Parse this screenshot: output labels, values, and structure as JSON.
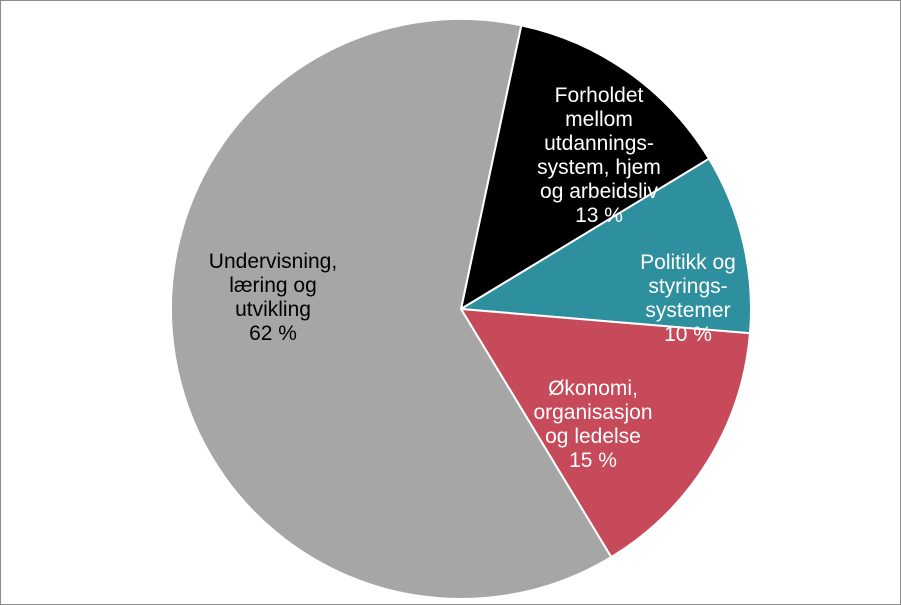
{
  "chart_data": {
    "type": "pie",
    "title": "",
    "start_angle_deg": 78,
    "direction": "clockwise",
    "slices": [
      {
        "label": [
          "Forholdet",
          "mellom",
          "utdannings-",
          "system, hjem",
          "og arbeidsliv"
        ],
        "value_text": "13 %",
        "value": 13,
        "color": "#000000",
        "text_color": "#ffffff"
      },
      {
        "label": [
          "Politikk og",
          "styrings-",
          "systemer"
        ],
        "value_text": "10 %",
        "value": 10,
        "color": "#2e8f9f",
        "text_color": "#ffffff"
      },
      {
        "label": [
          "Økonomi,",
          "organisasjon",
          "og ledelse"
        ],
        "value_text": "15 %",
        "value": 15,
        "color": "#c74a5a",
        "text_color": "#ffffff"
      },
      {
        "label": [
          "Undervisning,",
          "læring og",
          "utvikling"
        ],
        "value_text": "62 %",
        "value": 62,
        "color": "#a6a6a6",
        "text_color": "#000000"
      }
    ]
  }
}
